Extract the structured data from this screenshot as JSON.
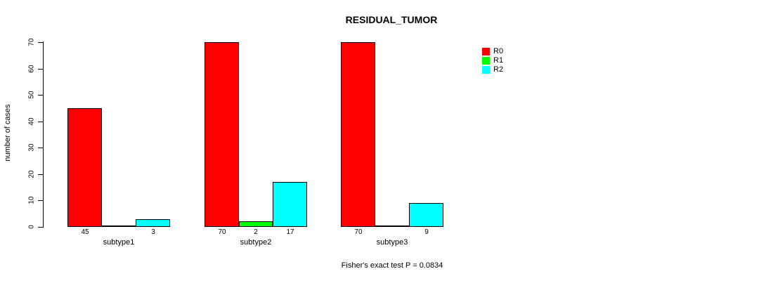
{
  "page": {
    "title": "RESIDUAL_TUMOR",
    "footnote": "Fisher's exact test P = 0.0834"
  },
  "chart_data": {
    "type": "bar",
    "title": "RESIDUAL_TUMOR",
    "categories": [
      "subtype1",
      "subtype2",
      "subtype3"
    ],
    "series": [
      {
        "name": "R0",
        "color": "#ff0000",
        "values": [
          45,
          70,
          70
        ]
      },
      {
        "name": "R1",
        "color": "#00ff00",
        "values": [
          0,
          2,
          0
        ]
      },
      {
        "name": "R2",
        "color": "#00ffff",
        "values": [
          3,
          17,
          9
        ]
      }
    ],
    "xlabel": "",
    "ylabel": "number of cases",
    "ylim": [
      0,
      70
    ],
    "yticks": [
      0,
      10,
      20,
      30,
      40,
      50,
      60,
      70
    ],
    "grid": false,
    "legend_position": "top-right",
    "bar_value_labels": true,
    "zero_bars_drawn_as_baseline_segment": true,
    "zero_value_labels_hidden": true,
    "annotation": "Fisher's exact test P = 0.0834"
  }
}
